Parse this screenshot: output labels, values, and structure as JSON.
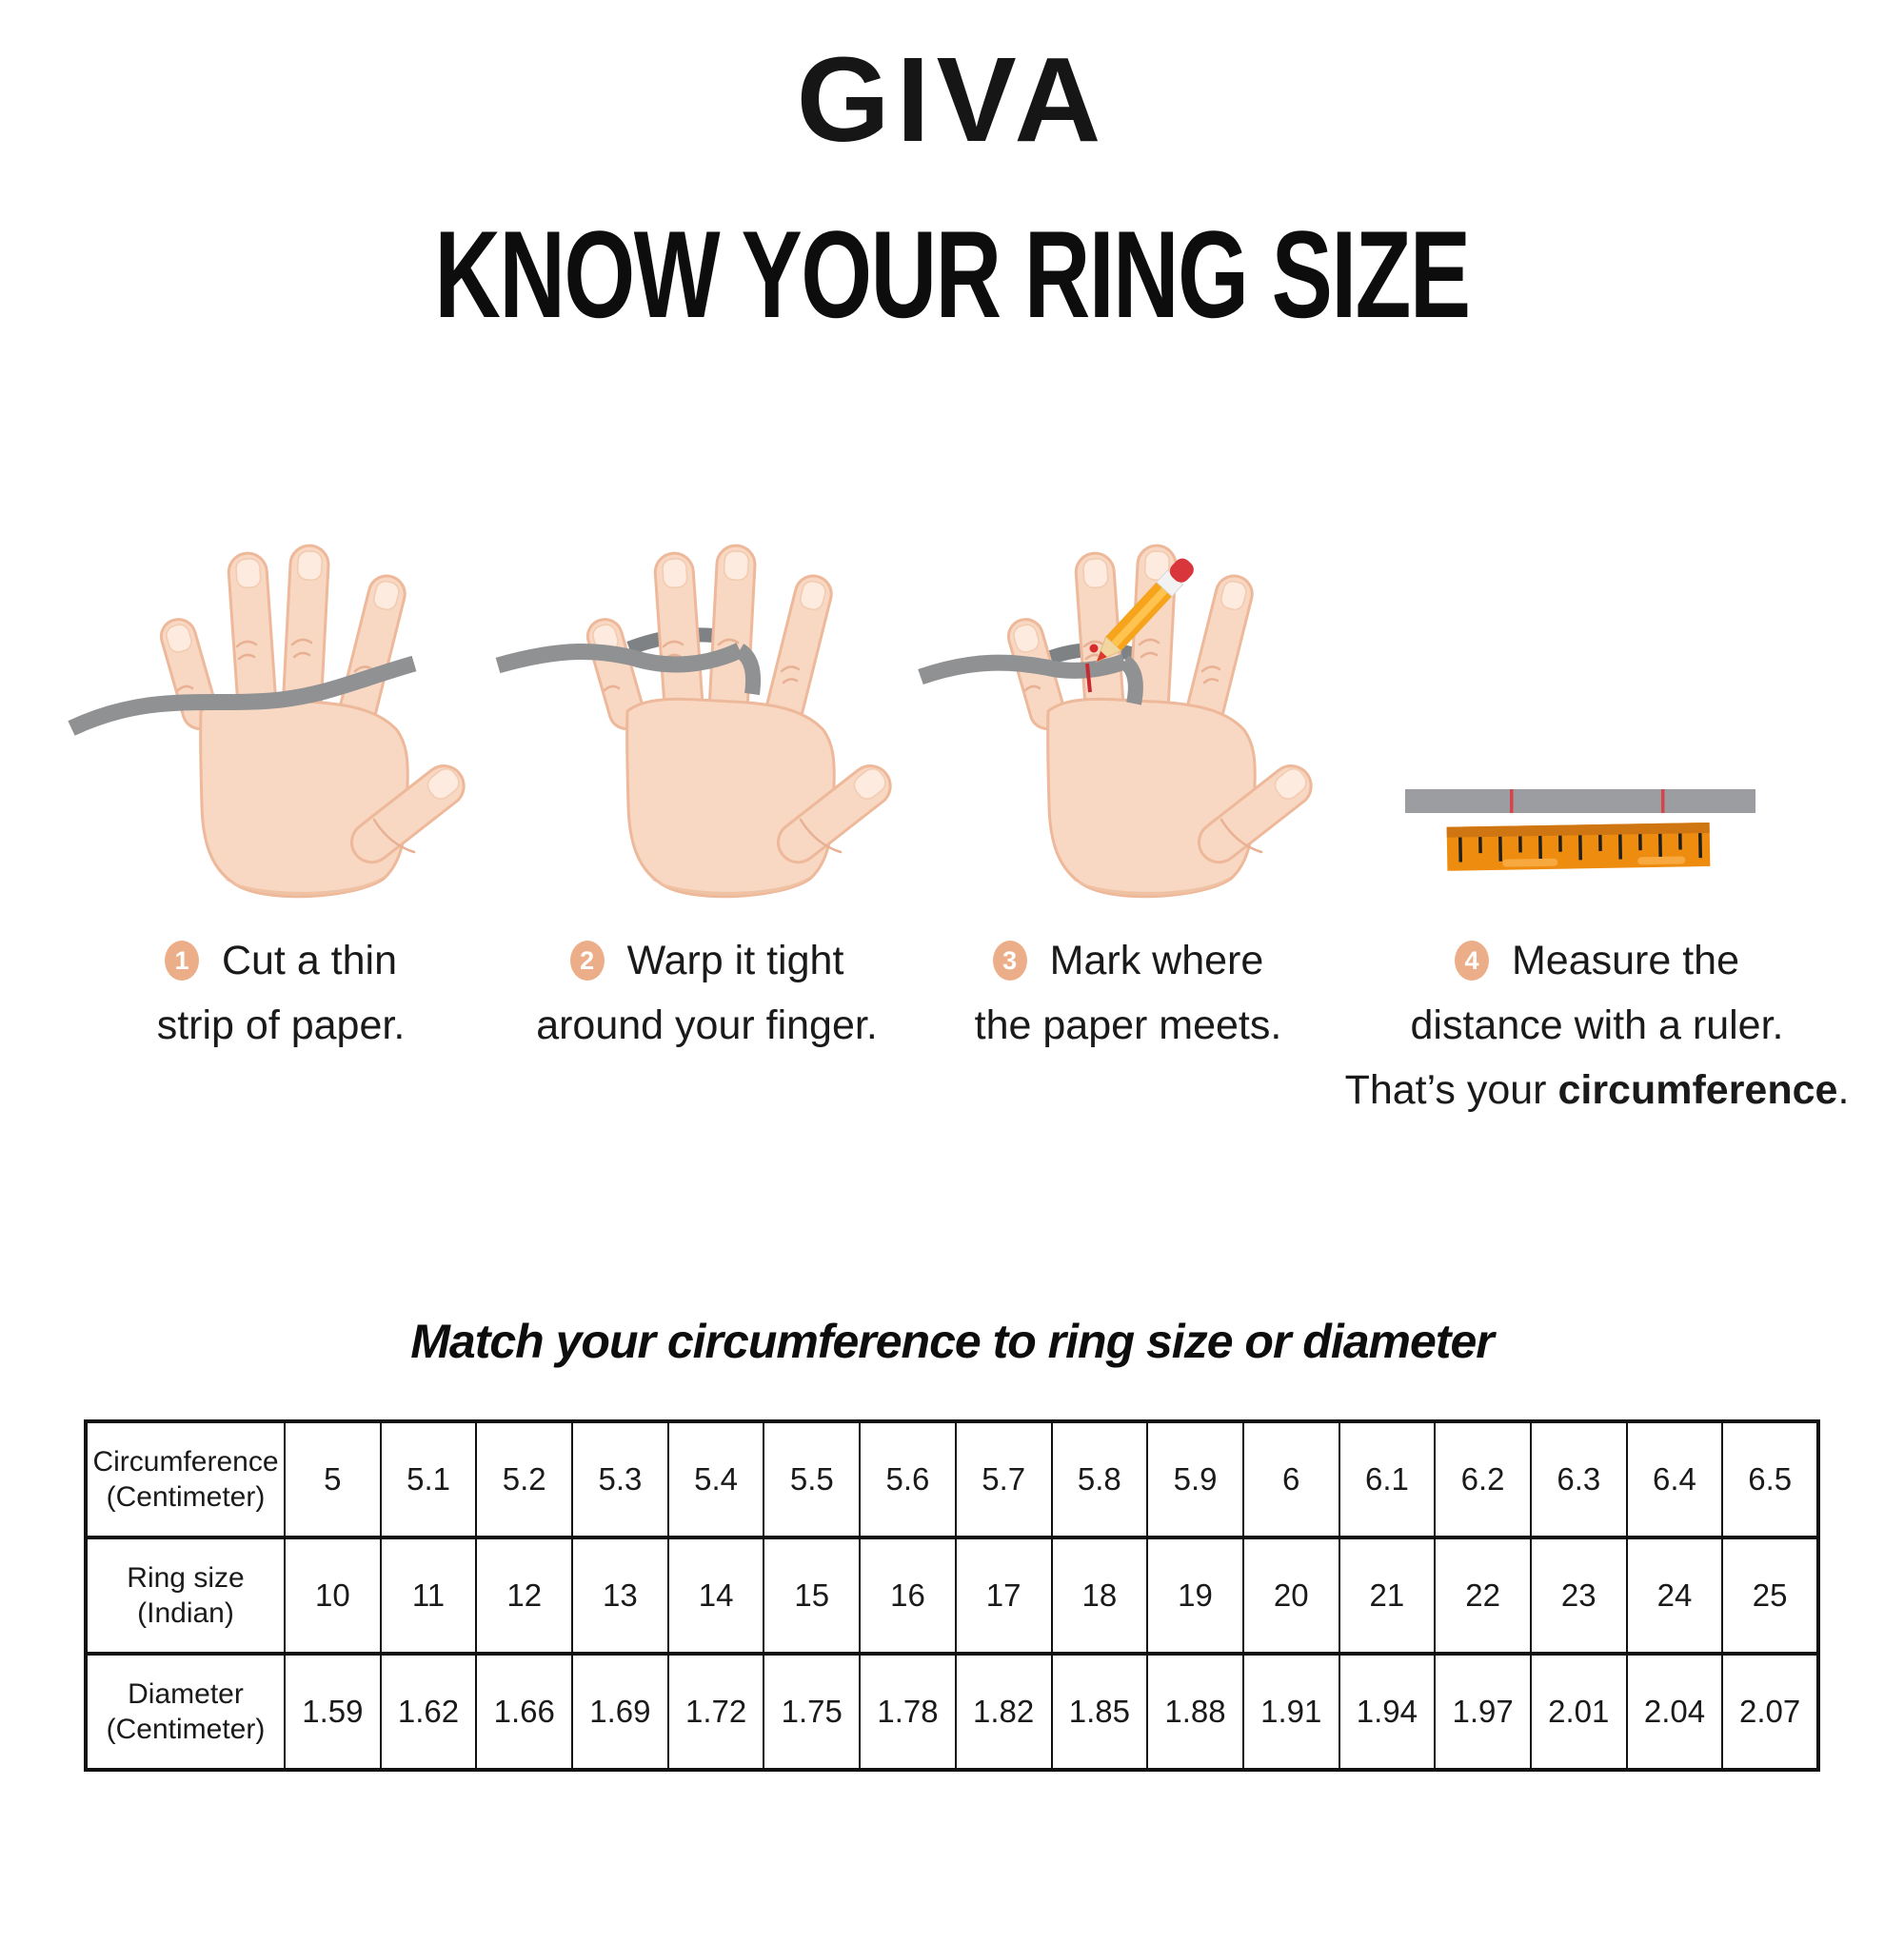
{
  "brand": {
    "logo": "GIVA"
  },
  "title": "KNOW YOUR RING SIZE",
  "steps": [
    {
      "num": "1",
      "lines": [
        "Cut a thin",
        "strip of paper."
      ]
    },
    {
      "num": "2",
      "lines": [
        "Warp it tight",
        "around your finger."
      ]
    },
    {
      "num": "3",
      "lines": [
        "Mark where",
        "the paper meets."
      ]
    },
    {
      "num": "4",
      "lines": [
        "Measure the",
        "distance with a ruler."
      ],
      "line3_prefix": "That’s your ",
      "line3_bold": "circumference",
      "line3_suffix": "."
    }
  ],
  "table_title": "Match your circumference to ring size or diameter",
  "table": {
    "rows": [
      {
        "label": "Circumference\n(Centimeter)",
        "values": [
          "5",
          "5.1",
          "5.2",
          "5.3",
          "5.4",
          "5.5",
          "5.6",
          "5.7",
          "5.8",
          "5.9",
          "6",
          "6.1",
          "6.2",
          "6.3",
          "6.4",
          "6.5"
        ]
      },
      {
        "label": "Ring size\n(Indian)",
        "values": [
          "10",
          "11",
          "12",
          "13",
          "14",
          "15",
          "16",
          "17",
          "18",
          "19",
          "20",
          "21",
          "22",
          "23",
          "24",
          "25"
        ]
      },
      {
        "label": "Diameter\n(Centimeter)",
        "values": [
          "1.59",
          "1.62",
          "1.66",
          "1.69",
          "1.72",
          "1.75",
          "1.78",
          "1.82",
          "1.85",
          "1.88",
          "1.91",
          "1.94",
          "1.97",
          "2.01",
          "2.04",
          "2.07"
        ]
      }
    ]
  },
  "icons": {
    "step_badge": "filled-circle-with-number",
    "paper_strip": "gray-band",
    "pencil": "yellow-pencil-with-red-eraser",
    "ruler": "orange-ruler-with-ticks"
  },
  "colors": {
    "text": "#1A1A1A",
    "badge": "#ECAE89",
    "skin": "#F8D7C3",
    "skin_outline": "#EDB99A",
    "nail": "#FCEBDE",
    "crease": "#E8B193",
    "shadow": "#EFC2A4",
    "strip": "#8F9193",
    "strip_dark": "#7F8284",
    "paper_gray": "#9B9DA0",
    "mark_red": "#C92A31",
    "ruler_orange": "#EE8C10",
    "ruler_band": "#CF7612",
    "pencil_yellow": "#F7A41D",
    "eraser_red": "#D9363B"
  }
}
